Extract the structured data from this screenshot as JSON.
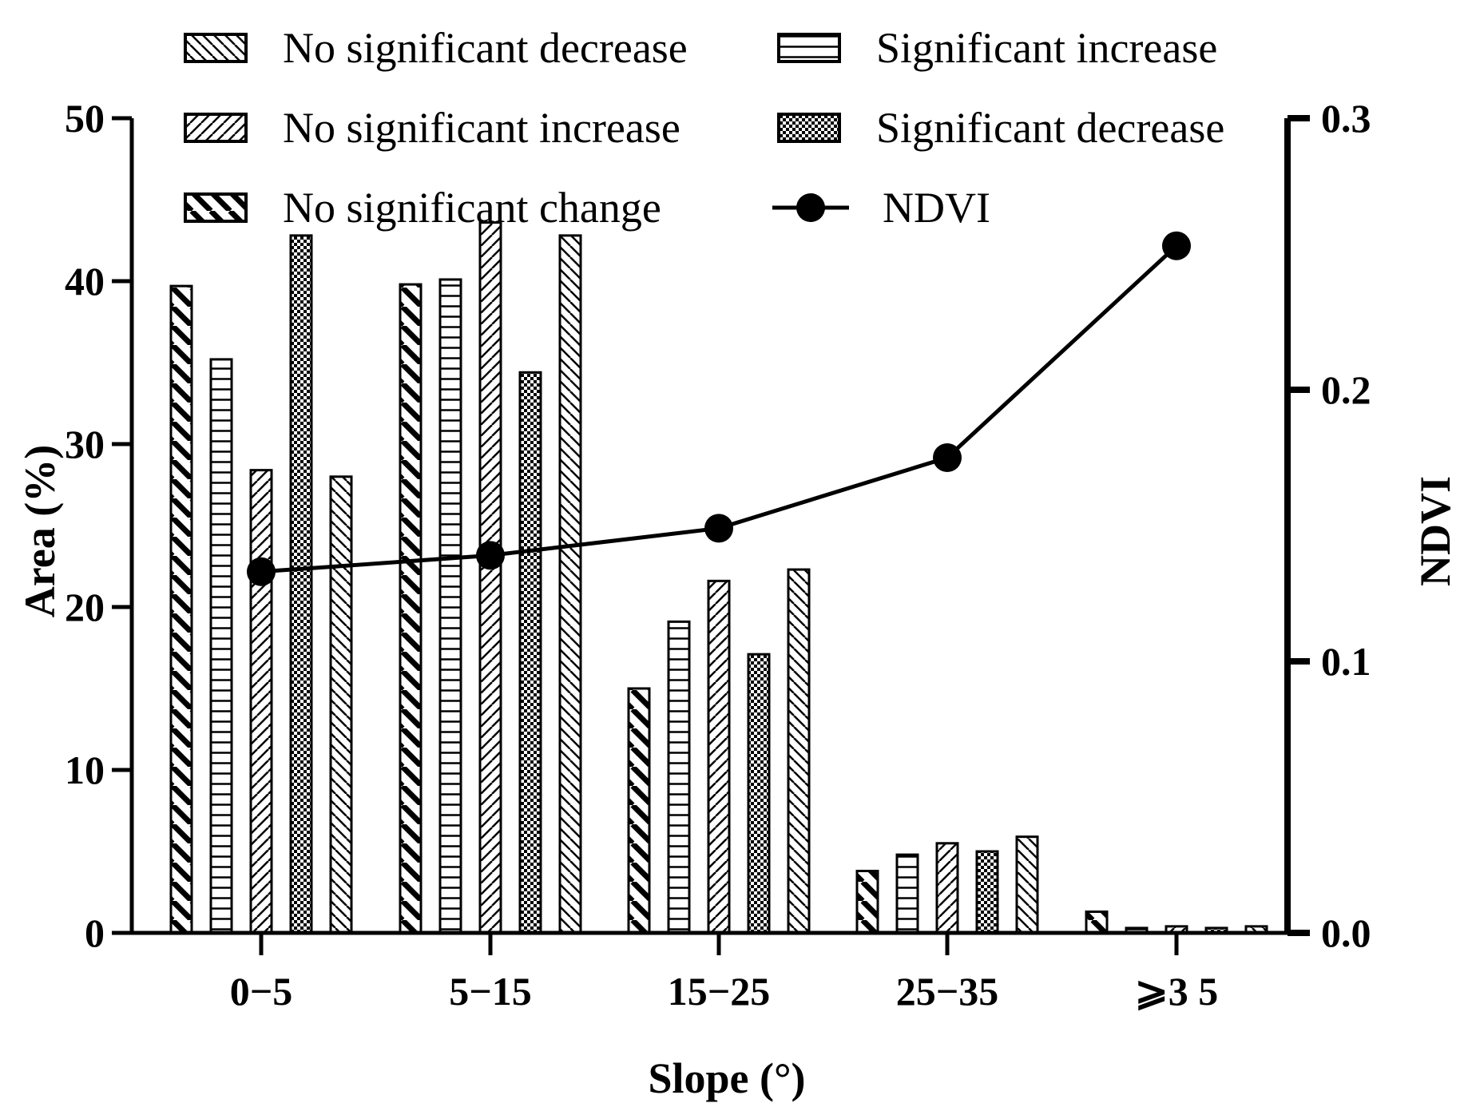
{
  "chart_data": {
    "type": "bar",
    "categories": [
      "0−5",
      "5−15",
      "15−25",
      "25−35",
      "⩾3 5"
    ],
    "series": [
      {
        "name": "No significant change",
        "pattern": "back-hatch",
        "values": [
          39.7,
          39.8,
          15.0,
          3.8,
          1.3
        ]
      },
      {
        "name": "Significant increase",
        "pattern": "horizontal",
        "values": [
          35.2,
          40.1,
          19.1,
          4.8,
          0.3
        ]
      },
      {
        "name": "No significant increase",
        "pattern": "fwd-hatch",
        "values": [
          28.4,
          43.6,
          21.6,
          5.5,
          0.4
        ]
      },
      {
        "name": "Significant decrease",
        "pattern": "checker",
        "values": [
          42.8,
          34.4,
          17.1,
          5.0,
          0.3
        ]
      },
      {
        "name": "No significant decrease",
        "pattern": "back-hatch-fine",
        "values": [
          28.0,
          42.8,
          22.3,
          5.9,
          0.4
        ]
      }
    ],
    "line_series": {
      "name": "NDVI",
      "values": [
        0.133,
        0.139,
        0.149,
        0.175,
        0.253
      ]
    },
    "xlabel": "Slope (°)",
    "ylabel": "Area (%)",
    "y2label": "NDVI",
    "ylim": [
      0,
      50
    ],
    "yticks": [
      "0",
      "10",
      "20",
      "30",
      "40",
      "50"
    ],
    "y2lim": [
      0,
      0.3
    ],
    "y2ticks": [
      "0.0",
      "0.1",
      "0.2",
      "0.3"
    ],
    "legend": [
      {
        "label": "No significant decrease",
        "pattern": "back-hatch-fine"
      },
      {
        "label": "Significant increase",
        "pattern": "horizontal"
      },
      {
        "label": "No significant increase",
        "pattern": "fwd-hatch"
      },
      {
        "label": "Significant decrease",
        "pattern": "checker"
      },
      {
        "label": "No significant change",
        "pattern": "back-hatch"
      },
      {
        "label": "NDVI",
        "pattern": "line"
      }
    ],
    "legend_placement": "top",
    "grid": false,
    "colors": {
      "ink": "#000000",
      "background": "#ffffff"
    }
  }
}
